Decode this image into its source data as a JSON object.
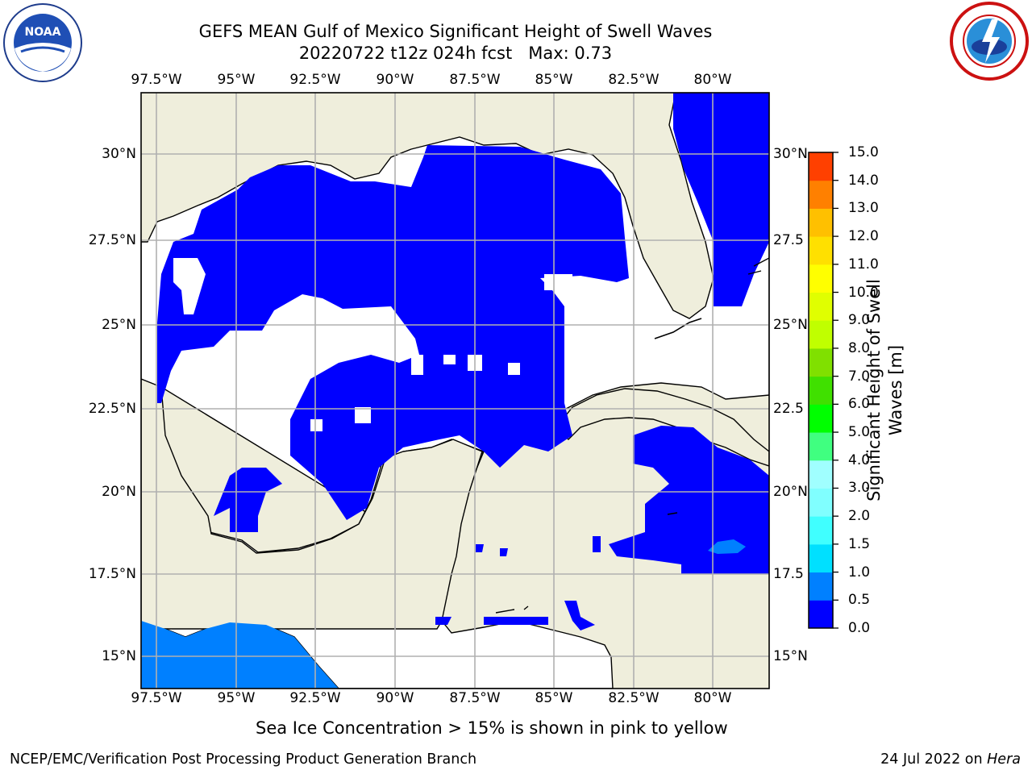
{
  "title": {
    "line1": "GEFS MEAN Gulf of Mexico Significant Height of Swell Waves",
    "line2": "20220722 t12z 024h fcst   Max: 0.73"
  },
  "logos": {
    "left": "noaa-logo",
    "right": "nws-logo",
    "noaa_text": "NOAA"
  },
  "map": {
    "lon_ticks_top": [
      "97.5°W",
      "95°W",
      "92.5°W",
      "90°W",
      "87.5°W",
      "85°W",
      "82.5°W",
      "80°W"
    ],
    "lon_ticks_bottom": [
      "97.5°W",
      "95°W",
      "92.5°W",
      "90°W",
      "87.5°W",
      "85°W",
      "82.5°W",
      "80°W"
    ],
    "lat_ticks_left": [
      "30°N",
      "27.5°N",
      "25°N",
      "22.5°N",
      "20°N",
      "17.5°N",
      "15°N"
    ],
    "lat_ticks_right": [
      "30°N",
      "27.5",
      "25°N",
      "22.5",
      "20°N",
      "17.5",
      "15°N"
    ],
    "colors": {
      "land": "#efeedc",
      "water": "#ffffff",
      "band_0": "#0000ff",
      "band_05": "#0080ff",
      "grid": "#b0b0b0"
    }
  },
  "colorbar": {
    "label": "Significant Height of Swell\nWaves [m]",
    "tick_labels": [
      "0.0",
      "0.5",
      "1.0",
      "1.5",
      "2.0",
      "3.0",
      "4.0",
      "5.0",
      "6.0",
      "7.0",
      "8.0",
      "9.0",
      "10.0",
      "11.0",
      "12.0",
      "13.0",
      "14.0",
      "15.0"
    ],
    "colors": [
      "#0000ff",
      "#0080ff",
      "#00e0ff",
      "#40ffff",
      "#80ffff",
      "#a0ffff",
      "#40ff80",
      "#00ff00",
      "#40e000",
      "#80e000",
      "#c0ff00",
      "#e0ff00",
      "#ffff00",
      "#ffe000",
      "#ffc000",
      "#ff8000",
      "#ff4000",
      "#ff0000"
    ]
  },
  "caption": "Sea Ice Concentration > 15% is shown in pink to yellow",
  "footer": {
    "left": "NCEP/EMC/Verification Post Processing Product Generation Branch",
    "right_date": "24 Jul 2022 on ",
    "right_host": "Hera"
  }
}
